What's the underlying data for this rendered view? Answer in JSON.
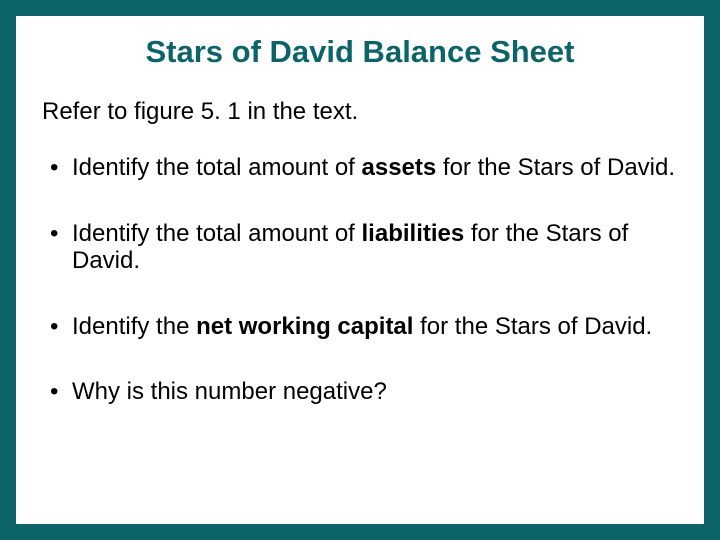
{
  "colors": {
    "background": "#0d6468",
    "slide_bg": "#ffffff",
    "title_color": "#0d6468",
    "text_color": "#000000"
  },
  "typography": {
    "title_fontsize": 31,
    "body_fontsize": 24,
    "line_height": 1.15,
    "font_family": "Arial"
  },
  "title": "Stars of David Balance Sheet",
  "subtitle": "Refer to figure 5. 1 in the text.",
  "bullets": [
    {
      "pre": "Identify the total amount of ",
      "bold": "assets",
      "post": " for the Stars of David."
    },
    {
      "pre": "Identify the total amount of ",
      "bold": "liabilities",
      "post": " for the Stars of David."
    },
    {
      "pre": "Identify the ",
      "bold": "net working capital",
      "post": " for the Stars of David."
    },
    {
      "pre": "Why is this number negative?",
      "bold": "",
      "post": ""
    }
  ]
}
